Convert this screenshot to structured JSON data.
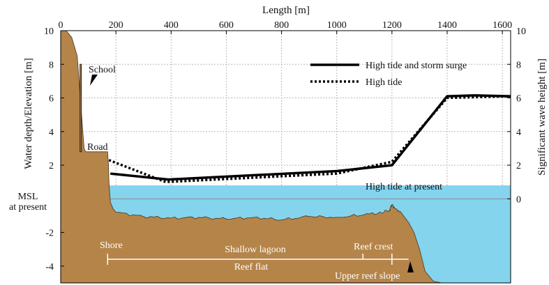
{
  "chart_data": {
    "type": "line",
    "x_top_label": "Length [m]",
    "y_left_label": "Water depth/Elevation [m]",
    "y_right_label": "Significant wave height [m]",
    "x_ticks": [
      "0",
      "200",
      "400",
      "600",
      "800",
      "1000",
      "1200",
      "1400",
      "1600"
    ],
    "y_left_ticks": [
      "10",
      "8",
      "6",
      "4",
      "2",
      "-2",
      "-4"
    ],
    "y_right_ticks": [
      "10",
      "8",
      "6",
      "4",
      "2",
      "0"
    ],
    "xlim": [
      0,
      1630
    ],
    "ylim": [
      -5,
      10
    ],
    "grid": "dotted, above water only",
    "water_level_m": 0.8,
    "colors": {
      "ground": "#b58449",
      "water": "#84d4ee",
      "line": "#000000",
      "grid": "#b8b8b8"
    },
    "legend_position": "top-right",
    "series": [
      {
        "name": "High tide and storm surge",
        "style": "solid",
        "x": [
          180,
          390,
          1000,
          1200,
          1400,
          1500,
          1630
        ],
        "y": [
          1.5,
          1.15,
          1.65,
          2.0,
          6.1,
          6.15,
          6.1
        ]
      },
      {
        "name": "High tide",
        "style": "dotted",
        "x": [
          175,
          380,
          1000,
          1200,
          1400,
          1630
        ],
        "y": [
          2.3,
          1.0,
          1.5,
          2.2,
          6.0,
          6.1
        ]
      }
    ],
    "profile": {
      "x": [
        0,
        20,
        40,
        60,
        80,
        85,
        90,
        95,
        170,
        173,
        175,
        178,
        180,
        190,
        200,
        300,
        400,
        500,
        600,
        700,
        800,
        900,
        1000,
        1100,
        1150,
        1190,
        1200,
        1210,
        1230,
        1260,
        1280,
        1300,
        1320,
        1350,
        1380,
        1630
      ],
      "y": [
        10,
        10,
        9.6,
        8.5,
        4.0,
        3.0,
        2.8,
        2.8,
        2.8,
        2.0,
        1.0,
        0.3,
        -0.2,
        -0.6,
        -0.8,
        -1.05,
        -1.15,
        -1.1,
        -1.2,
        -1.1,
        -1.25,
        -1.05,
        -1.1,
        -0.95,
        -0.85,
        -0.7,
        -0.35,
        -0.55,
        -0.75,
        -1.4,
        -2.0,
        -3.0,
        -4.3,
        -4.9,
        -5.0,
        -5.0
      ]
    },
    "school_post": {
      "x": [
        70,
        75
      ],
      "y": [
        2.8,
        8.0
      ]
    },
    "annotations": {
      "school": "School",
      "road": "Road",
      "msl_line1": "MSL",
      "msl_line2": "at present",
      "high_tide_present": "High tide at present",
      "shore": "Shore",
      "shallow_lagoon": "Shallow lagoon",
      "reef_crest": "Reef crest",
      "reef_flat": "Reef flat",
      "upper_reef_slope": "Upper reef slope"
    },
    "zones_m": {
      "shore": 170,
      "lagoon_end": 1095,
      "crest_end": 1200,
      "flat_end": 1260
    }
  }
}
